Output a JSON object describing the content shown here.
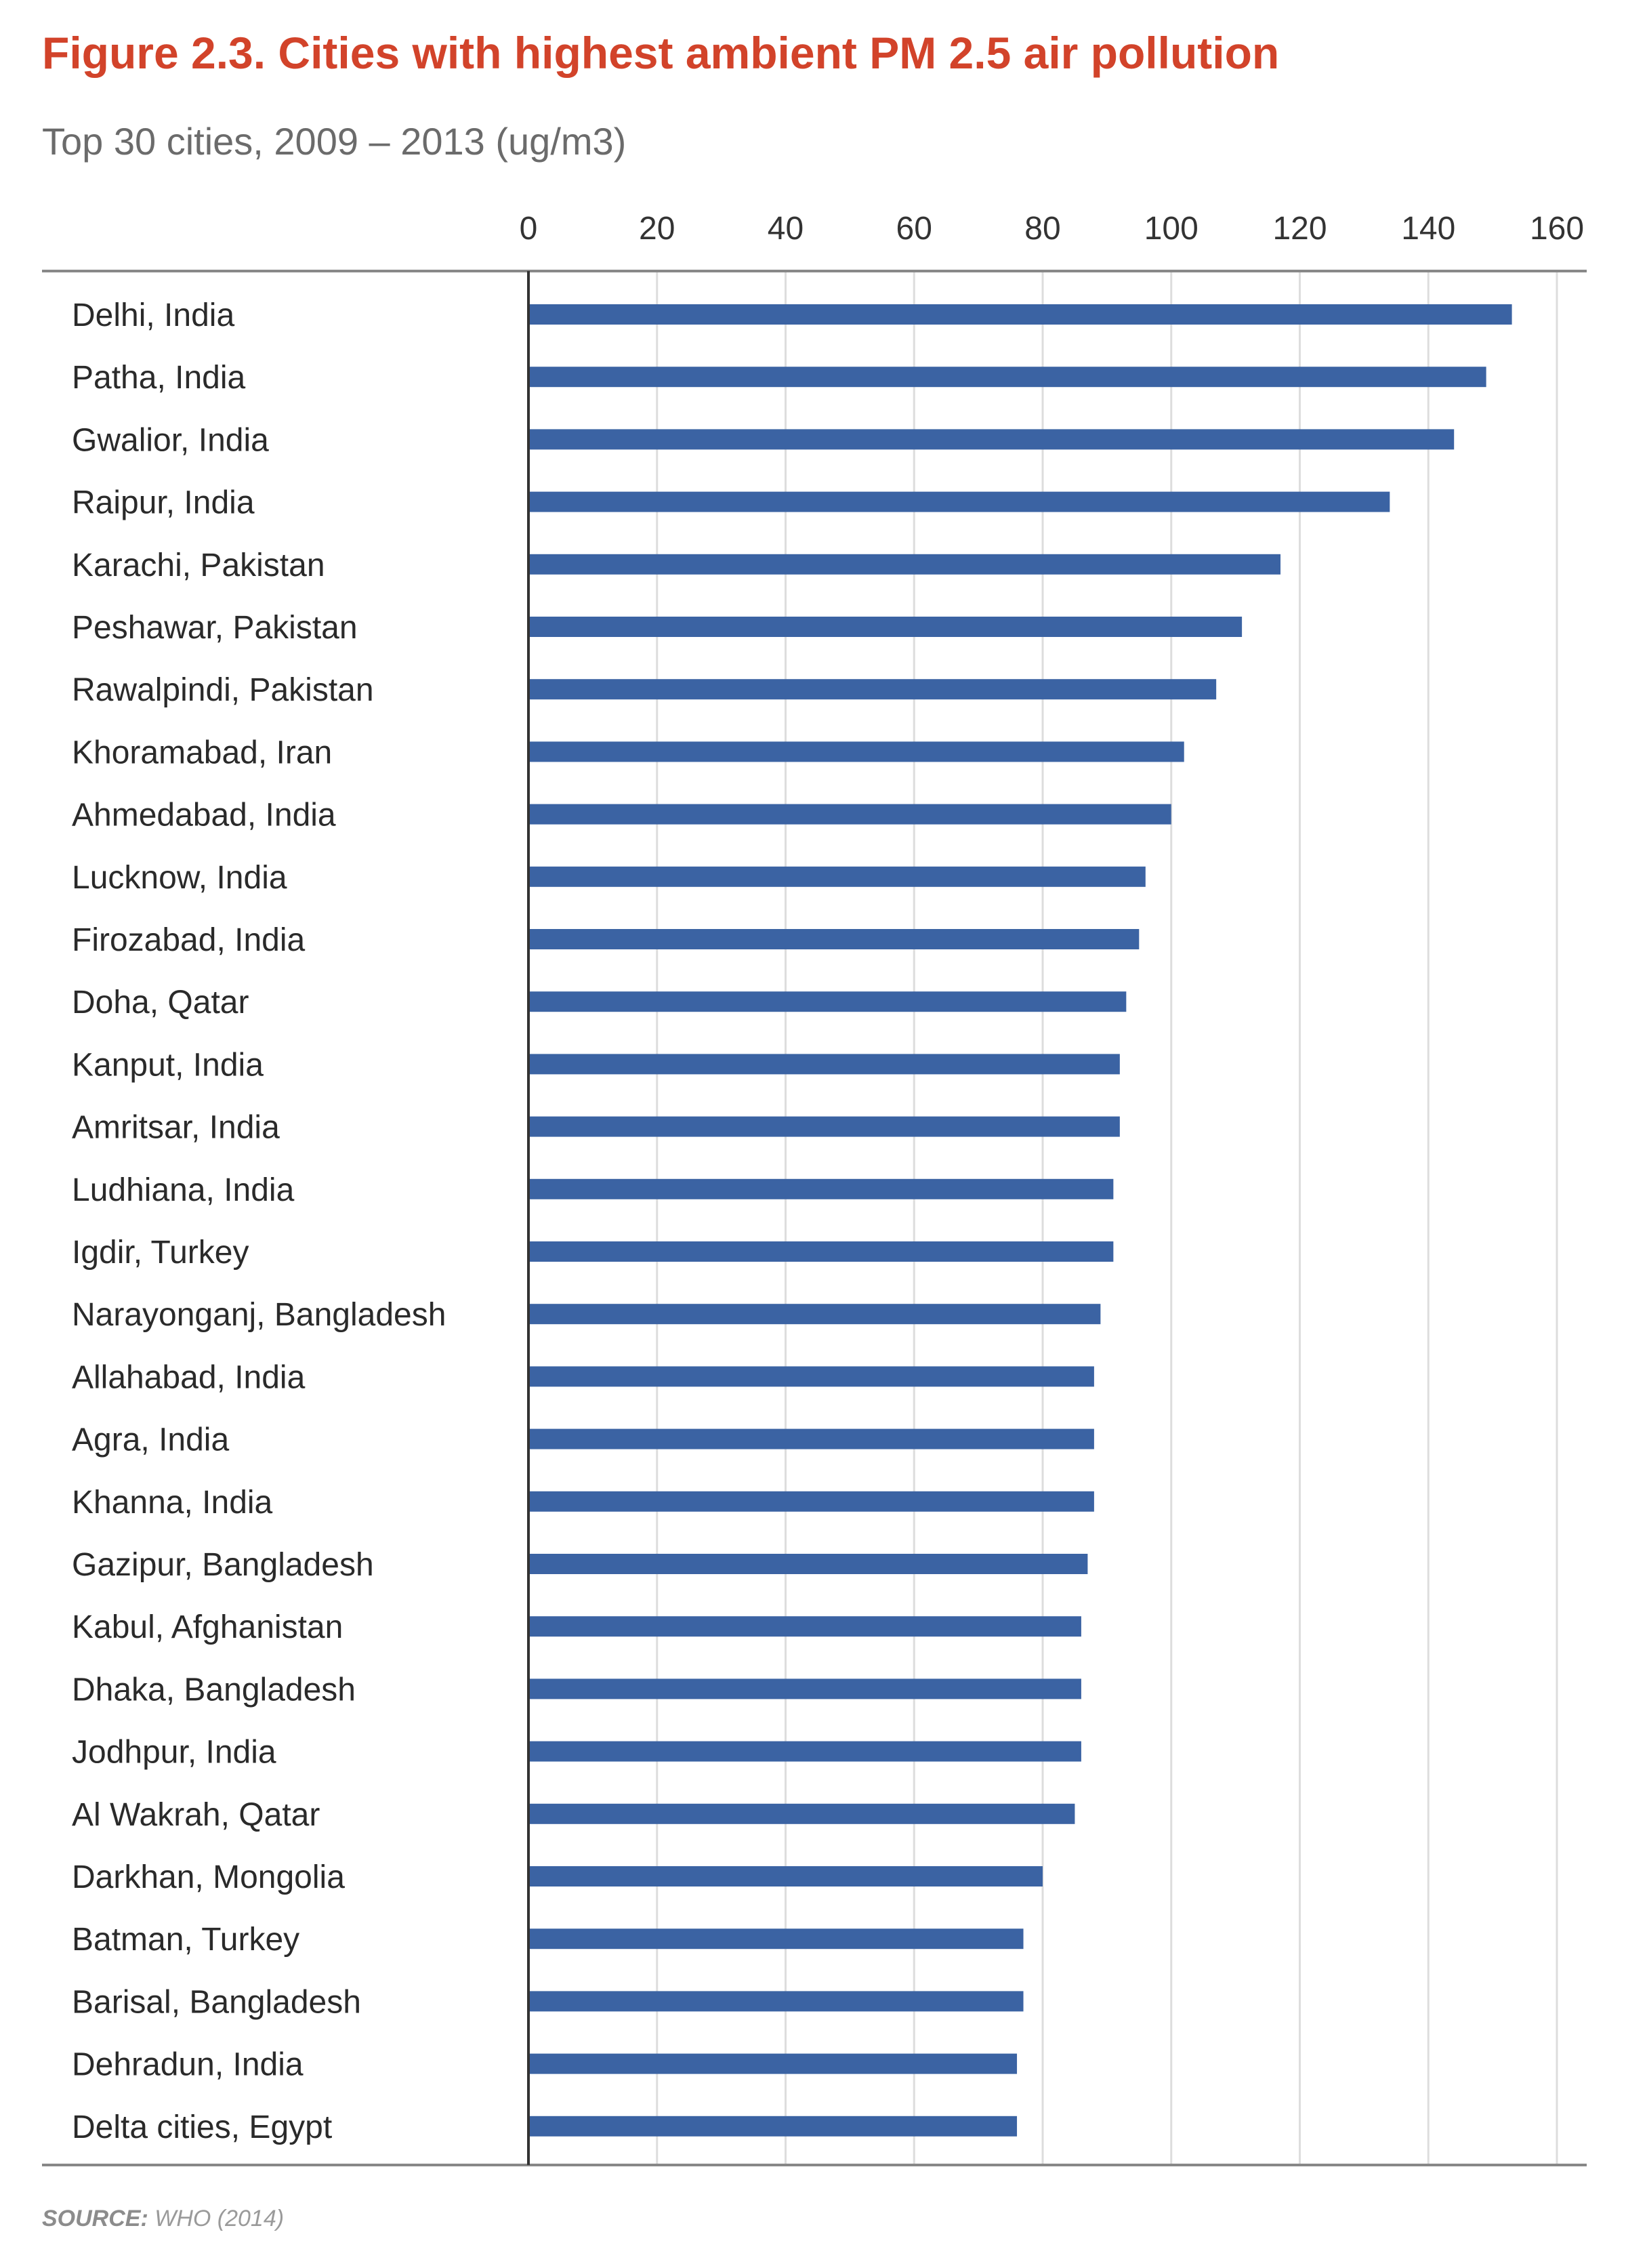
{
  "header": {
    "title": "Figure 2.3. Cities with highest ambient PM 2.5 air pollution",
    "subtitle": "Top 30 cities, 2009 – 2013 (ug/m3)"
  },
  "source": {
    "label": "SOURCE:",
    "text": "WHO (2014)"
  },
  "colors": {
    "bar": "#3b63a3",
    "title": "#d2432a",
    "grid": "#dddddd",
    "axis": "#333333"
  },
  "chart_data": {
    "type": "bar",
    "orientation": "horizontal",
    "title": "Figure 2.3. Cities with highest ambient PM 2.5 air pollution",
    "subtitle": "Top 30 cities, 2009 – 2013 (ug/m3)",
    "xlabel": "",
    "ylabel": "",
    "xlim": [
      0,
      160
    ],
    "xticks": [
      0,
      20,
      40,
      60,
      80,
      100,
      120,
      140,
      160
    ],
    "x_axis_position": "top",
    "grid": true,
    "legend": "none",
    "categories": [
      "Delhi, India",
      "Patha, India",
      "Gwalior, India",
      "Raipur, India",
      "Karachi, Pakistan",
      "Peshawar, Pakistan",
      "Rawalpindi, Pakistan",
      "Khoramabad, Iran",
      "Ahmedabad, India",
      "Lucknow, India",
      "Firozabad, India",
      "Doha, Qatar",
      "Kanput, India",
      "Amritsar, India",
      "Ludhiana, India",
      "Igdir, Turkey",
      "Narayonganj, Bangladesh",
      "Allahabad, India",
      "Agra, India",
      "Khanna, India",
      "Gazipur, Bangladesh",
      "Kabul, Afghanistan",
      "Dhaka, Bangladesh",
      "Jodhpur, India",
      "Al Wakrah, Qatar",
      "Darkhan, Mongolia",
      "Batman, Turkey",
      "Barisal, Bangladesh",
      "Dehradun, India",
      "Delta cities, Egypt"
    ],
    "values": [
      153,
      149,
      144,
      134,
      117,
      111,
      107,
      102,
      100,
      96,
      95,
      93,
      92,
      92,
      91,
      91,
      89,
      88,
      88,
      88,
      87,
      86,
      86,
      86,
      85,
      80,
      77,
      77,
      76,
      76
    ]
  }
}
